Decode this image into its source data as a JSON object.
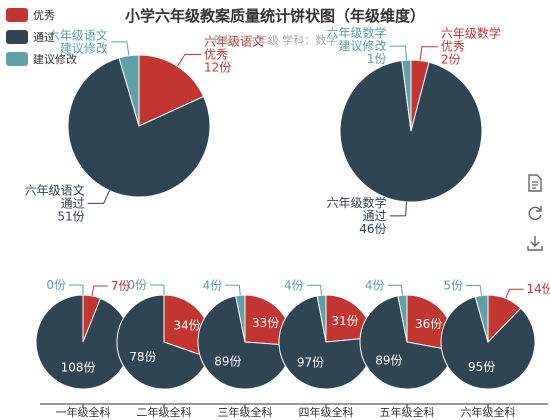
{
  "title": "小学六年级教案质量统计饼状图（年级维度）",
  "subtitle": "年级：六年级    学科：数学",
  "legend": [
    {
      "label": "优秀",
      "color": "#c23531"
    },
    {
      "label": "通过",
      "color": "#2f4554"
    },
    {
      "label": "建议修改",
      "color": "#61a0a8"
    }
  ],
  "toolbox": [
    {
      "name": "data-view-icon"
    },
    {
      "name": "restore-icon"
    },
    {
      "name": "save-image-icon"
    }
  ],
  "chart_data": {
    "type": "pie",
    "unit": "份",
    "series_names": [
      "优秀",
      "通过",
      "建议修改"
    ],
    "colors": [
      "#c23531",
      "#2f4554",
      "#61a0a8"
    ],
    "pies": [
      {
        "category": "六年级语文",
        "values": [
          12,
          51,
          3
        ],
        "shown": [
          true,
          true,
          false
        ]
      },
      {
        "category": "六年级数学",
        "values": [
          2,
          46,
          1
        ],
        "shown": [
          true,
          true,
          true
        ]
      },
      {
        "category": "一年级全科",
        "values": [
          7,
          108,
          0
        ],
        "shown": [
          true,
          true,
          true
        ]
      },
      {
        "category": "二年级全科",
        "values": [
          34,
          78,
          0
        ],
        "shown": [
          true,
          true,
          true
        ]
      },
      {
        "category": "三年级全科",
        "values": [
          33,
          89,
          4
        ],
        "shown": [
          true,
          true,
          true
        ]
      },
      {
        "category": "四年级全科",
        "values": [
          31,
          97,
          4
        ],
        "shown": [
          true,
          true,
          true
        ]
      },
      {
        "category": "五年级全科",
        "values": [
          36,
          89,
          4
        ],
        "shown": [
          true,
          true,
          true
        ]
      },
      {
        "category": "六年级全科",
        "values": [
          14,
          95,
          5
        ],
        "shown": [
          true,
          true,
          true
        ]
      }
    ]
  }
}
